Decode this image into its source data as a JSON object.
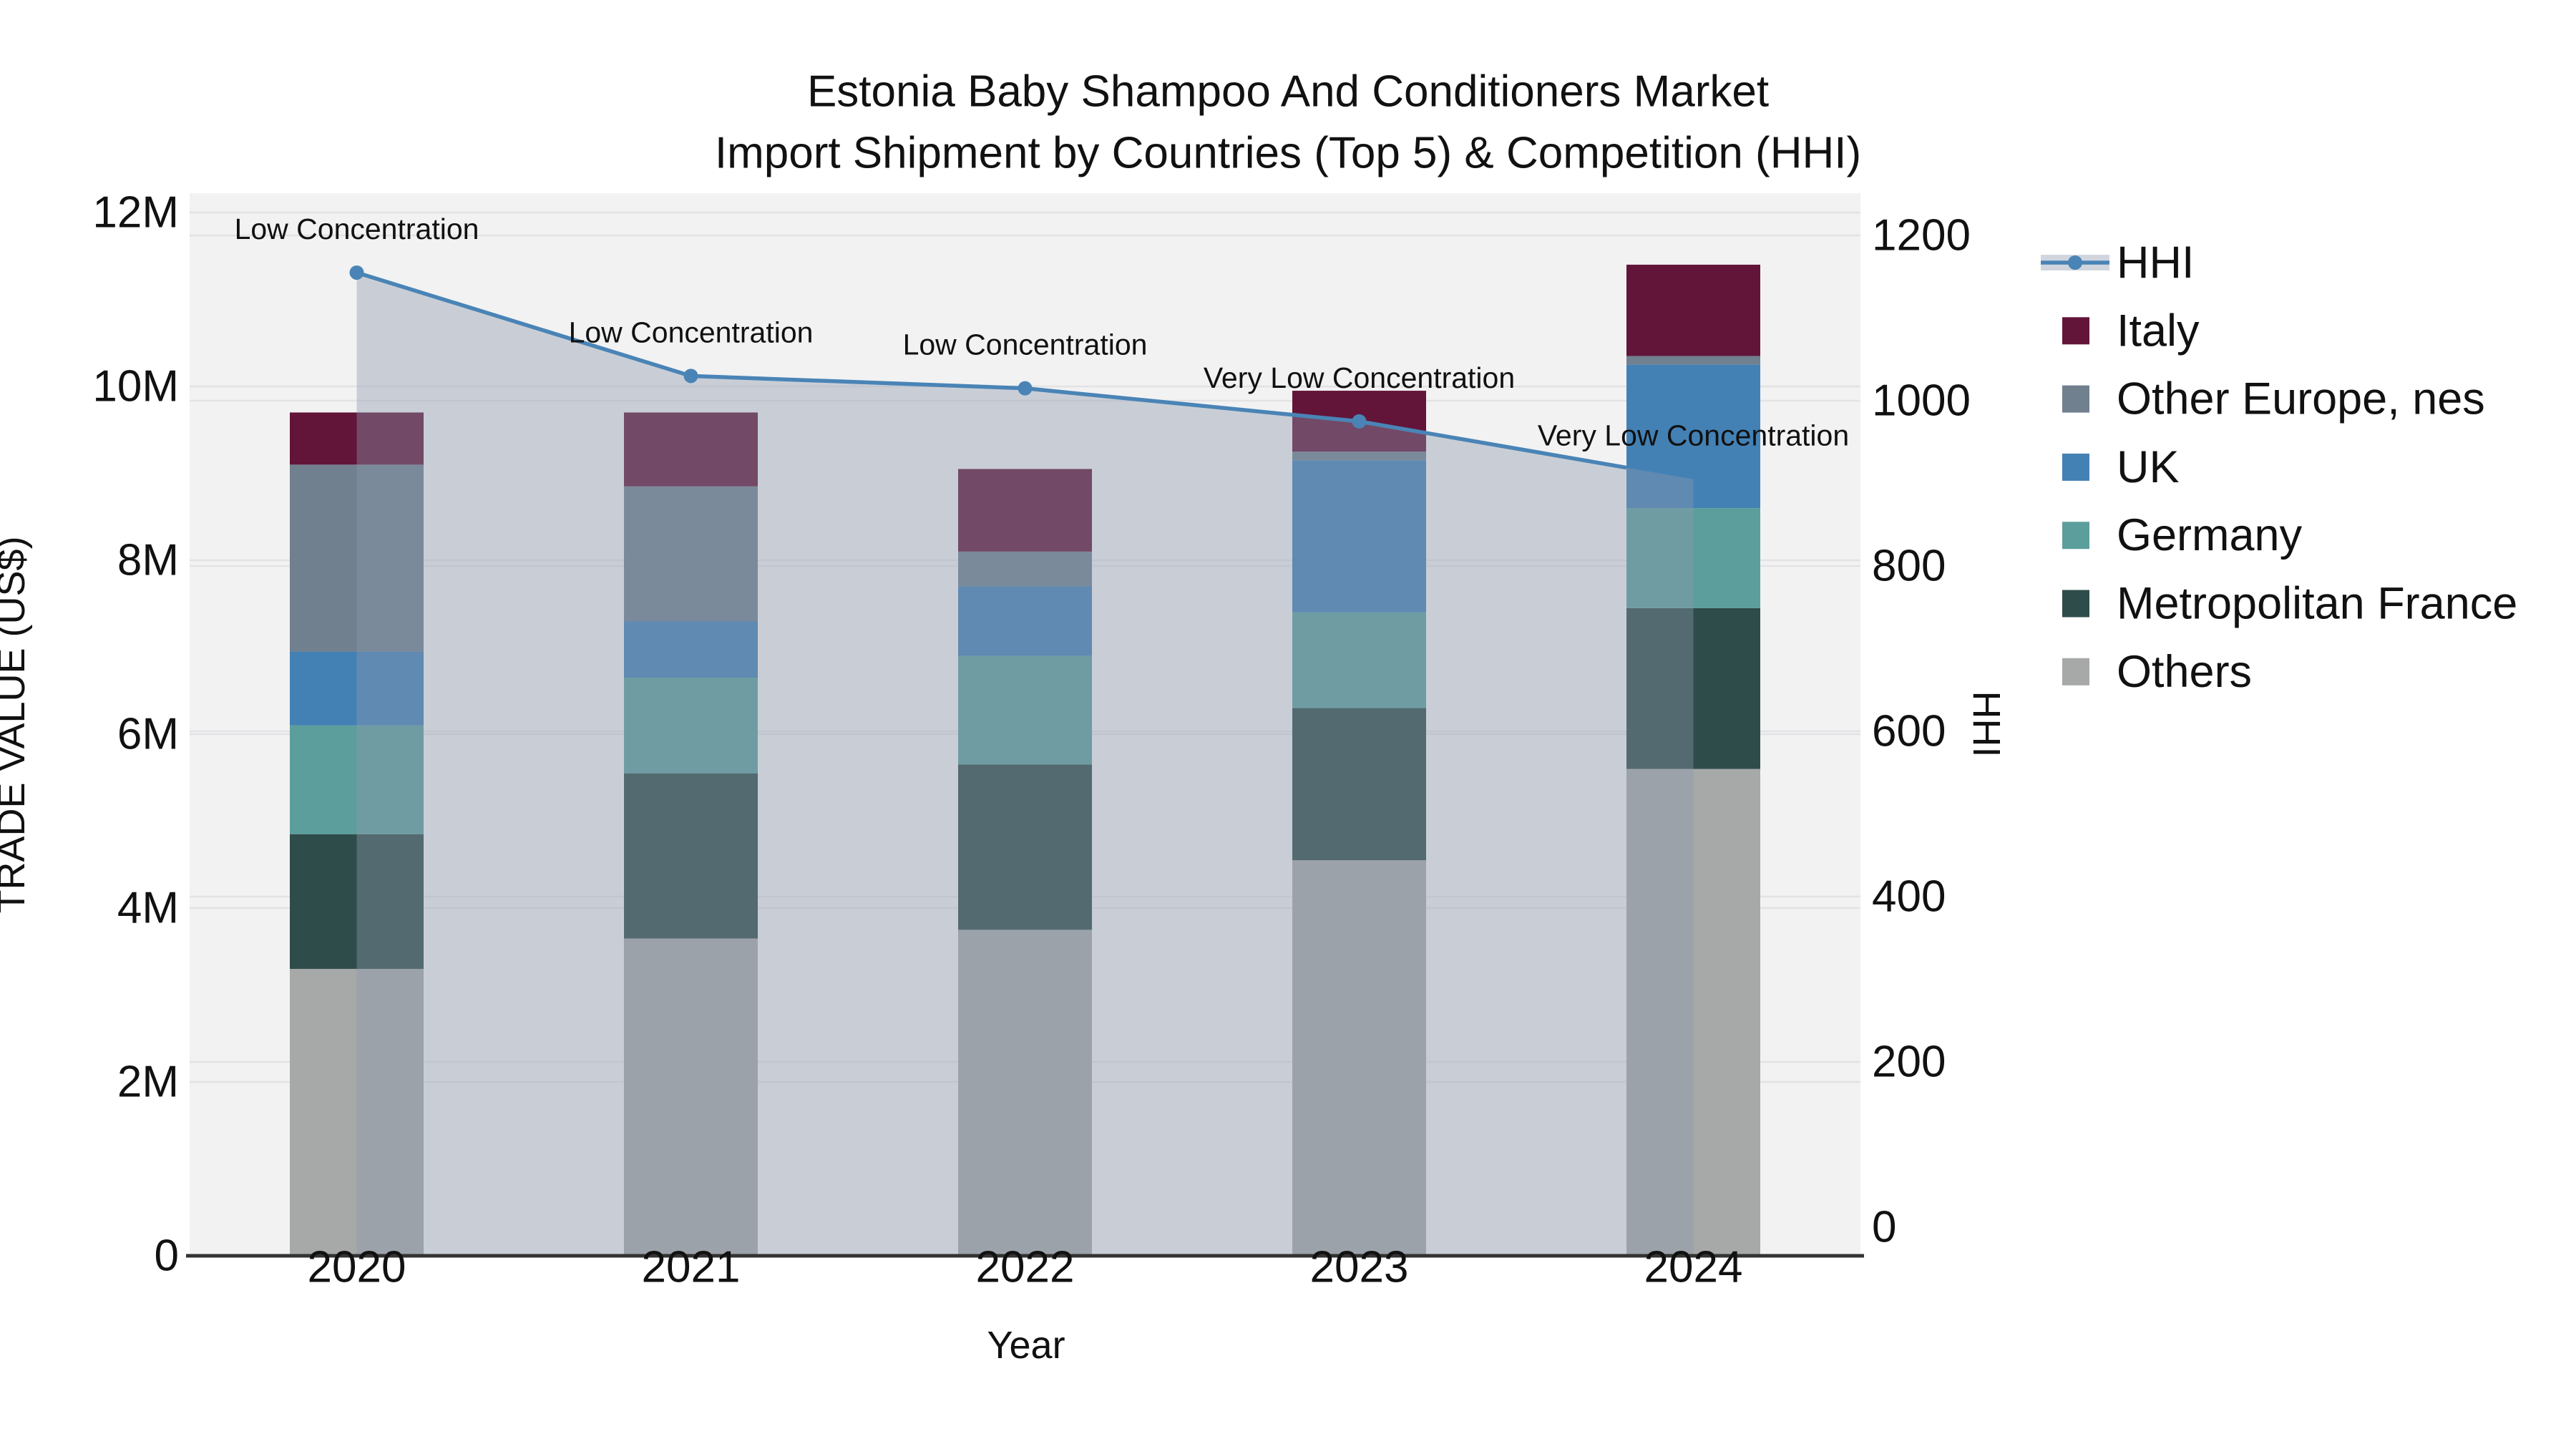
{
  "title": {
    "line1": "Estonia Baby Shampoo And Conditioners Market",
    "line2": "Import Shipment by Countries (Top 5) & Competition (HHI)"
  },
  "axes": {
    "y_left": {
      "title": "TRADE VALUE (US$)",
      "tick_labels": [
        "0",
        "2M",
        "4M",
        "6M",
        "8M",
        "10M",
        "12M"
      ],
      "tick_values_millions": [
        0,
        2,
        4,
        6,
        8,
        10,
        12
      ]
    },
    "y_right": {
      "title": "HHI",
      "tick_labels": [
        "0",
        "200",
        "400",
        "600",
        "800",
        "1000",
        "1200"
      ],
      "tick_values": [
        0,
        200,
        400,
        600,
        800,
        1000,
        1200
      ]
    },
    "x": {
      "title": "Year",
      "categories": [
        "2020",
        "2021",
        "2022",
        "2023",
        "2024"
      ]
    }
  },
  "legend": {
    "items": [
      {
        "label": "HHI",
        "type": "line",
        "color": "#4A84B6"
      },
      {
        "label": "Italy",
        "type": "swatch",
        "color": "#621538"
      },
      {
        "label": "Other Europe, nes",
        "type": "swatch",
        "color": "#71808F"
      },
      {
        "label": "UK",
        "type": "swatch",
        "color": "#4381B5"
      },
      {
        "label": "Germany",
        "type": "swatch",
        "color": "#5C9E9C"
      },
      {
        "label": "Metropolitan France",
        "type": "swatch",
        "color": "#2E4C4A"
      },
      {
        "label": "Others",
        "type": "swatch",
        "color": "#A7A8A8"
      }
    ]
  },
  "colors": {
    "plot_background": "#F2F2F2",
    "gridline": "#E3E3E6",
    "axis_line": "#333333",
    "hhi_line": "#4A84B6",
    "hhi_area_fill": "rgba(141,153,172,0.40)",
    "italy": "#621538",
    "other_europe_nes": "#71808F",
    "uk": "#4381B5",
    "germany": "#5C9E9C",
    "metropolitan_france": "#2E4C4A",
    "others": "#A7A8A8"
  },
  "chart_data": {
    "type": "combo: stacked bar (trade value, left axis) + line with markers (HHI, right axis) with translucent area fill under the line",
    "categories": [
      "2020",
      "2021",
      "2022",
      "2023",
      "2024"
    ],
    "bar_unit": "US$ millions",
    "series": [
      {
        "name": "Others",
        "color": "#A7A8A8",
        "values": [
          3.3,
          3.65,
          3.75,
          4.55,
          5.6
        ]
      },
      {
        "name": "Metropolitan France",
        "color": "#2E4C4A",
        "values": [
          1.55,
          1.9,
          1.9,
          1.75,
          1.85
        ]
      },
      {
        "name": "Germany",
        "color": "#5C9E9C",
        "values": [
          1.25,
          1.1,
          1.25,
          1.1,
          1.15
        ]
      },
      {
        "name": "UK",
        "color": "#4381B5",
        "values": [
          0.85,
          0.65,
          0.8,
          1.75,
          1.65
        ]
      },
      {
        "name": "Other Europe, nes",
        "color": "#71808F",
        "values": [
          2.15,
          1.55,
          0.4,
          0.1,
          0.1
        ]
      },
      {
        "name": "Italy",
        "color": "#621538",
        "values": [
          0.6,
          0.85,
          0.95,
          0.7,
          1.05
        ]
      }
    ],
    "bar_totals_millions": [
      9.7,
      9.7,
      9.05,
      9.95,
      11.4
    ],
    "line_series": {
      "name": "HHI",
      "axis": "right",
      "color": "#4A84B6",
      "values": [
        1155,
        1030,
        1015,
        975,
        905
      ]
    },
    "annotations": [
      "Low Concentration",
      "Low Concentration",
      "Low Concentration",
      "Very Low Concentration",
      "Very Low Concentration"
    ],
    "xlabel": "Year",
    "ylabel_left": "TRADE VALUE (US$)",
    "ylabel_right": "HHI",
    "ylim_left_millions": [
      0,
      12
    ],
    "ylim_right": [
      0,
      1200
    ],
    "legend_position": "right",
    "grid": "horizontal gridlines for both y axes on light gray plot background"
  }
}
